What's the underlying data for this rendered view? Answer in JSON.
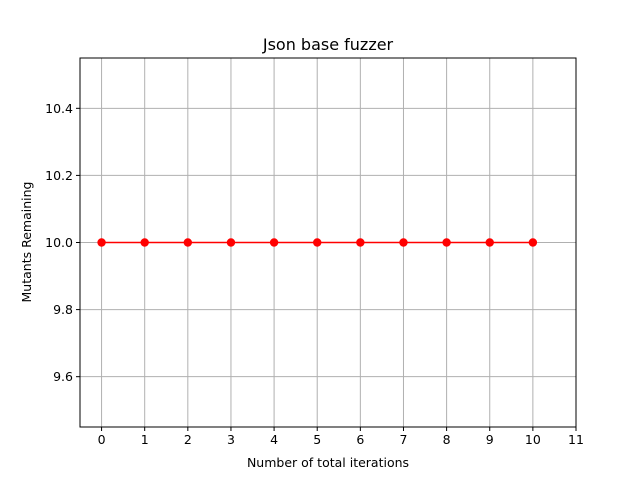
{
  "chart_data": {
    "type": "line",
    "title": "Json base fuzzer",
    "xlabel": "Number of total iterations",
    "ylabel": "Mutants Remaining",
    "x": [
      0,
      1,
      2,
      3,
      4,
      5,
      6,
      7,
      8,
      9,
      10
    ],
    "series": [
      {
        "values": [
          10.0,
          10.0,
          10.0,
          10.0,
          10.0,
          10.0,
          10.0,
          10.0,
          10.0,
          10.0,
          10.0
        ],
        "color": "#ff0000",
        "marker": "circle"
      }
    ],
    "xlim": [
      -0.5,
      11
    ],
    "ylim": [
      9.45,
      10.55
    ],
    "xticks": [
      0,
      1,
      2,
      3,
      4,
      5,
      6,
      7,
      8,
      9,
      10,
      11
    ],
    "xtick_labels": [
      "0",
      "1",
      "2",
      "3",
      "4",
      "5",
      "6",
      "7",
      "8",
      "9",
      "10",
      "11"
    ],
    "yticks": [
      9.6,
      9.8,
      10.0,
      10.2,
      10.4
    ],
    "ytick_labels": [
      "9.6",
      "9.8",
      "10.0",
      "10.2",
      "10.4"
    ],
    "grid": true,
    "grid_color": "#b0b0b0"
  }
}
